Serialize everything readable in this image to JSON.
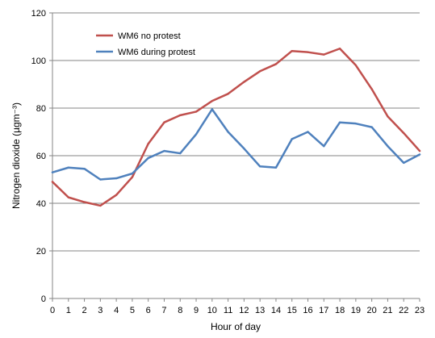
{
  "chart_data": {
    "type": "line",
    "title": "",
    "xlabel": "Hour of day",
    "ylabel": "Nitrogen dioxide (µgm⁻³)",
    "x": [
      0,
      1,
      2,
      3,
      4,
      5,
      6,
      7,
      8,
      9,
      10,
      11,
      12,
      13,
      14,
      15,
      16,
      17,
      18,
      19,
      20,
      21,
      22,
      23
    ],
    "xlim": [
      0,
      23
    ],
    "ylim": [
      0,
      120
    ],
    "yticks": [
      0,
      20,
      40,
      60,
      80,
      100,
      120
    ],
    "grid": "horizontal",
    "legend_position": "top-left",
    "series": [
      {
        "name": "WM6 no protest",
        "color": "#c0504d",
        "values": [
          49,
          42.5,
          40.5,
          39,
          43.5,
          51,
          65,
          74,
          77,
          78.5,
          83,
          86,
          91,
          95.5,
          98.5,
          104,
          103.5,
          102.5,
          105,
          98,
          88,
          76.5,
          69.5,
          62
        ]
      },
      {
        "name": "WM6 during protest",
        "color": "#4f81bd",
        "values": [
          53,
          55,
          54.5,
          50,
          50.5,
          52.5,
          59,
          62,
          61,
          69,
          79.5,
          70,
          63,
          55.5,
          55,
          67,
          70,
          64,
          74,
          73.5,
          72,
          64,
          57,
          60.5
        ]
      }
    ]
  }
}
